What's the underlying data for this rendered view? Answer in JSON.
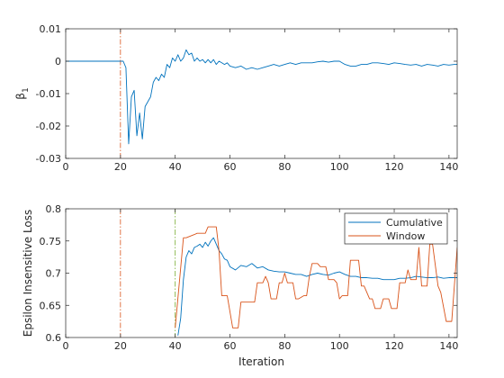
{
  "chart_data": [
    {
      "type": "line",
      "title": "",
      "xlabel": "",
      "ylabel": "β",
      "ylabel_subscript": "1",
      "xlim": [
        0,
        143
      ],
      "ylim": [
        -0.03,
        0.01
      ],
      "xticks": [
        0,
        20,
        40,
        60,
        80,
        100,
        120,
        140
      ],
      "xtick_labels": [
        "0",
        "20",
        "40",
        "60",
        "80",
        "100",
        "120",
        "140"
      ],
      "yticks": [
        -0.03,
        -0.02,
        -0.01,
        0,
        0.01
      ],
      "ytick_labels": [
        "-0.03",
        "-0.02",
        "-0.01",
        "0",
        "0.01"
      ],
      "grid": false,
      "legend": null,
      "vlines": [
        {
          "x": 20,
          "color": "#d95319",
          "style": "dashdot"
        }
      ],
      "series": [
        {
          "color": "#0072bd",
          "x": [
            0,
            20,
            21,
            22,
            23,
            24,
            25,
            26,
            27,
            28,
            29,
            30,
            31,
            32,
            33,
            34,
            35,
            36,
            37,
            38,
            39,
            40,
            41,
            42,
            43,
            44,
            45,
            46,
            47,
            48,
            49,
            50,
            51,
            52,
            53,
            54,
            55,
            56,
            57,
            58,
            59,
            60,
            62,
            64,
            66,
            68,
            70,
            72,
            74,
            76,
            78,
            80,
            82,
            84,
            86,
            88,
            90,
            92,
            94,
            96,
            98,
            100,
            102,
            104,
            106,
            108,
            110,
            112,
            114,
            116,
            118,
            120,
            122,
            124,
            126,
            128,
            130,
            132,
            134,
            136,
            138,
            140,
            142,
            143
          ],
          "y": [
            0,
            0,
            0,
            -0.002,
            -0.0255,
            -0.011,
            -0.009,
            -0.023,
            -0.016,
            -0.024,
            -0.014,
            -0.0125,
            -0.011,
            -0.0065,
            -0.005,
            -0.006,
            -0.004,
            -0.005,
            -0.001,
            -0.002,
            0.001,
            0.0,
            0.002,
            0.0,
            0.001,
            0.0035,
            0.002,
            0.0025,
            0.0,
            0.001,
            0.0,
            0.0005,
            -0.0005,
            0.0005,
            -0.0005,
            0.0005,
            -0.001,
            0.0,
            -0.0005,
            -0.001,
            -0.0005,
            -0.0015,
            -0.002,
            -0.0015,
            -0.0025,
            -0.002,
            -0.0025,
            -0.002,
            -0.0015,
            -0.001,
            -0.0015,
            -0.001,
            -0.0005,
            -0.001,
            -0.0005,
            -0.0005,
            -0.0005,
            -0.0002,
            0.0,
            -0.0003,
            0.0,
            0.0,
            -0.001,
            -0.0015,
            -0.0015,
            -0.001,
            -0.001,
            -0.0005,
            -0.0005,
            -0.0007,
            -0.001,
            -0.0005,
            -0.0007,
            -0.001,
            -0.0012,
            -0.001,
            -0.0015,
            -0.001,
            -0.0012,
            -0.0015,
            -0.001,
            -0.0012,
            -0.001,
            -0.001
          ]
        }
      ]
    },
    {
      "type": "line",
      "title": "",
      "xlabel": "Iteration",
      "ylabel": "Epsilon Insensitive Loss",
      "xlim": [
        0,
        143
      ],
      "ylim": [
        0.6,
        0.8
      ],
      "xticks": [
        0,
        20,
        40,
        60,
        80,
        100,
        120,
        140
      ],
      "xtick_labels": [
        "0",
        "20",
        "40",
        "60",
        "80",
        "100",
        "120",
        "140"
      ],
      "yticks": [
        0.6,
        0.65,
        0.7,
        0.75,
        0.8
      ],
      "ytick_labels": [
        "0.6",
        "0.65",
        "0.7",
        "0.75",
        "0.8"
      ],
      "grid": false,
      "legend": "top-right",
      "vlines": [
        {
          "x": 20,
          "color": "#d95319",
          "style": "dashdot"
        },
        {
          "x": 40,
          "color": "#77ac30",
          "style": "dashdot"
        }
      ],
      "series": [
        {
          "name": "Cumulative",
          "color": "#0072bd",
          "x": [
            41,
            42,
            43,
            44,
            45,
            46,
            47,
            48,
            49,
            50,
            51,
            52,
            53,
            54,
            55,
            56,
            57,
            58,
            59,
            60,
            62,
            64,
            66,
            68,
            70,
            72,
            74,
            76,
            78,
            80,
            82,
            84,
            86,
            88,
            90,
            92,
            94,
            96,
            98,
            100,
            102,
            104,
            106,
            108,
            110,
            112,
            114,
            116,
            118,
            120,
            122,
            124,
            126,
            128,
            130,
            132,
            134,
            136,
            138,
            140,
            142,
            143
          ],
          "y": [
            0.603,
            0.63,
            0.69,
            0.725,
            0.735,
            0.73,
            0.74,
            0.742,
            0.745,
            0.74,
            0.748,
            0.742,
            0.75,
            0.755,
            0.745,
            0.735,
            0.73,
            0.722,
            0.72,
            0.71,
            0.705,
            0.712,
            0.71,
            0.715,
            0.708,
            0.71,
            0.705,
            0.703,
            0.702,
            0.702,
            0.7,
            0.698,
            0.698,
            0.695,
            0.698,
            0.7,
            0.698,
            0.697,
            0.7,
            0.702,
            0.698,
            0.695,
            0.695,
            0.693,
            0.693,
            0.692,
            0.692,
            0.69,
            0.69,
            0.69,
            0.692,
            0.692,
            0.693,
            0.695,
            0.694,
            0.693,
            0.693,
            0.694,
            0.692,
            0.693,
            0.693,
            0.693
          ]
        },
        {
          "name": "Window",
          "color": "#d95319",
          "x": [
            40,
            43,
            44,
            47,
            48,
            51,
            52,
            53,
            55,
            56,
            57,
            59,
            60,
            61,
            63,
            64,
            69,
            70,
            72,
            73,
            74,
            75,
            77,
            78,
            79,
            80,
            81,
            83,
            84,
            85,
            87,
            88,
            89,
            90,
            92,
            93,
            95,
            96,
            98,
            99,
            100,
            101,
            103,
            104,
            107,
            108,
            109,
            111,
            112,
            113,
            115,
            116,
            118,
            119,
            121,
            122,
            124,
            125,
            126,
            128,
            129,
            130,
            132,
            133,
            134,
            136,
            137,
            139,
            141,
            143
          ],
          "y": [
            0.615,
            0.755,
            0.755,
            0.76,
            0.762,
            0.762,
            0.772,
            0.772,
            0.772,
            0.735,
            0.665,
            0.665,
            0.64,
            0.615,
            0.615,
            0.655,
            0.655,
            0.685,
            0.685,
            0.695,
            0.685,
            0.66,
            0.66,
            0.685,
            0.685,
            0.7,
            0.685,
            0.685,
            0.66,
            0.66,
            0.665,
            0.665,
            0.695,
            0.715,
            0.715,
            0.71,
            0.71,
            0.69,
            0.69,
            0.685,
            0.66,
            0.665,
            0.665,
            0.72,
            0.72,
            0.68,
            0.68,
            0.66,
            0.66,
            0.645,
            0.645,
            0.66,
            0.66,
            0.645,
            0.645,
            0.685,
            0.685,
            0.705,
            0.69,
            0.69,
            0.74,
            0.68,
            0.68,
            0.745,
            0.745,
            0.68,
            0.67,
            0.625,
            0.625,
            0.74
          ]
        }
      ]
    }
  ]
}
